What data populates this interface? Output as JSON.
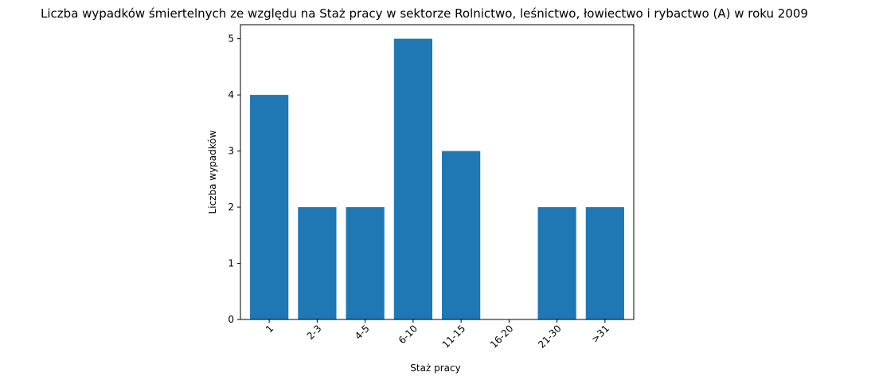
{
  "chart_data": {
    "type": "bar",
    "title": "Liczba wypadków śmiertelnych ze względu na Staż pracy w sektorze Rolnictwo, leśnictwo, łowiectwo i rybactwo (A) w roku 2009",
    "xlabel": "Staż pracy",
    "ylabel": "Liczba wypadków",
    "categories": [
      "1",
      "2-3",
      "4-5",
      "6-10",
      "11-15",
      "16-20",
      "21-30",
      ">31"
    ],
    "values": [
      4,
      2,
      2,
      5,
      3,
      0,
      2,
      2
    ],
    "ylim": [
      0,
      5.25
    ],
    "yticks": [
      0,
      1,
      2,
      3,
      4,
      5
    ],
    "grid": false,
    "bar_color": "#1f77b4",
    "x_tick_rotation_deg": 45
  }
}
